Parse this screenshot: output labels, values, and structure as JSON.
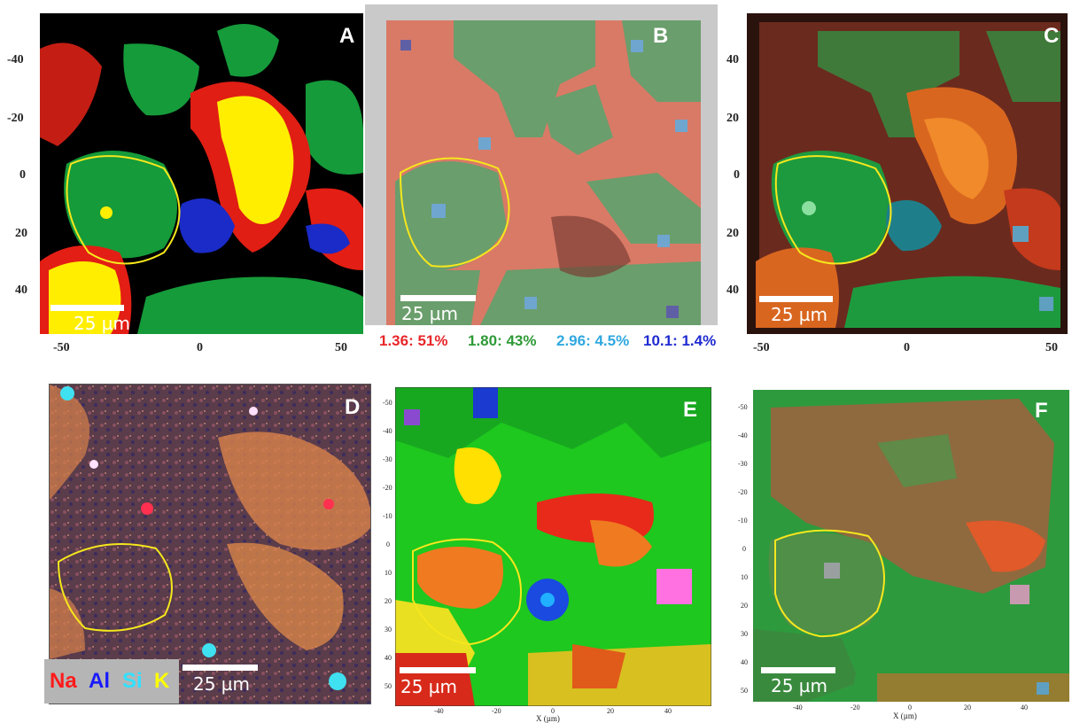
{
  "panels": {
    "A": {
      "label": "A",
      "scale": "25 µm",
      "y_ticks": [
        "-40",
        "-20",
        "0",
        "20",
        "40"
      ],
      "x_ticks": [
        "-50",
        "0",
        "50"
      ]
    },
    "B": {
      "label": "B",
      "scale": "25 µm",
      "legend": [
        {
          "text": "1.36: 51%",
          "color": "#e8262a"
        },
        {
          "text": "1.80: 43%",
          "color": "#2f9a37"
        },
        {
          "text": "2.96: 4.5%",
          "color": "#2fa8e0"
        },
        {
          "text": "10.1: 1.4%",
          "color": "#1f2bd0"
        }
      ]
    },
    "C": {
      "label": "C",
      "scale": "25 µm",
      "y_ticks": [
        "40",
        "20",
        "0",
        "20",
        "40"
      ],
      "x_ticks": [
        "-50",
        "0",
        "50"
      ]
    },
    "D": {
      "label": "D",
      "scale": "25 µm",
      "elements": [
        {
          "text": "Na",
          "color": "#ff1a1a"
        },
        {
          "text": "Al",
          "color": "#1a1aff"
        },
        {
          "text": "Si",
          "color": "#33e0ff"
        },
        {
          "text": "K",
          "color": "#ffff00"
        }
      ]
    },
    "E": {
      "label": "E",
      "scale": "25 µm",
      "y_ticks": [
        "-50",
        "-40",
        "-30",
        "-20",
        "-10",
        "0",
        "10",
        "20",
        "30",
        "40",
        "50"
      ],
      "x_ticks": [
        "-40",
        "-20",
        "0",
        "20",
        "40"
      ],
      "x_label": "X (µm)"
    },
    "F": {
      "label": "F",
      "scale": "25 µm",
      "y_ticks": [
        "-50",
        "-40",
        "-30",
        "-20",
        "-10",
        "0",
        "10",
        "20",
        "30",
        "40",
        "50"
      ],
      "x_ticks": [
        "-40",
        "-20",
        "0",
        "20",
        "40"
      ],
      "x_label": "X (µm)"
    }
  },
  "colors": {
    "highlight": "#f6e71d",
    "black": "#000000",
    "red": "#e41e1e",
    "yellow": "#ffef00",
    "green": "#149a3a",
    "blue": "#1630c8"
  }
}
